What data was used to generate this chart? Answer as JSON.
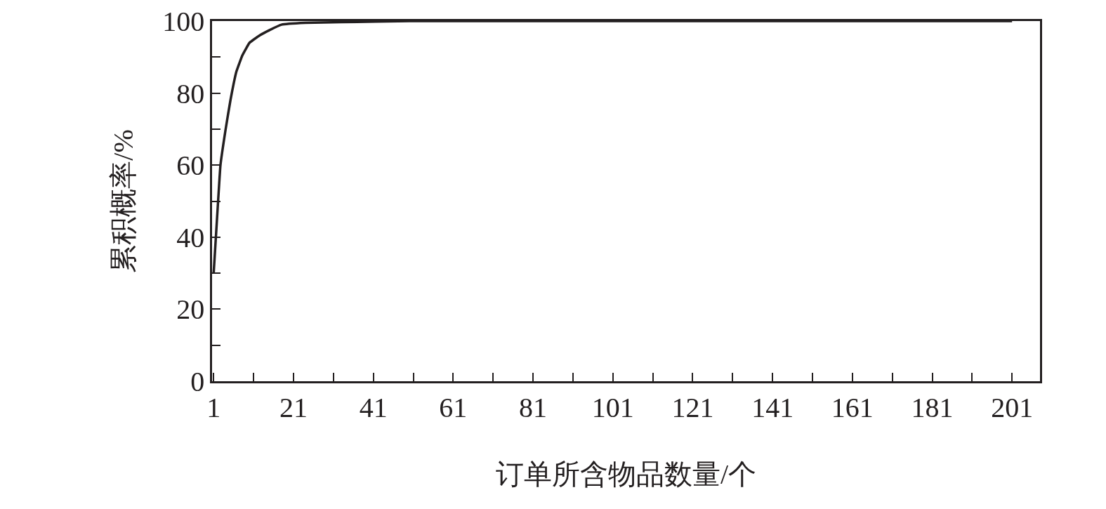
{
  "chart_data": {
    "type": "line",
    "xlabel": "订单所含物品数量/个",
    "ylabel": "累积概率/%",
    "x": [
      1,
      2,
      2.7,
      4,
      5.2,
      6.7,
      8.2,
      10,
      12.5,
      15,
      18,
      24,
      33,
      50,
      100,
      150,
      201
    ],
    "series": [
      {
        "color": "#231f20",
        "values": [
          30,
          48,
          60,
          70,
          78,
          86,
          90.5,
          94,
          96,
          97.5,
          99,
          99.5,
          99.7,
          100,
          100,
          100,
          100
        ]
      }
    ],
    "xlim": [
      0.6,
      208
    ],
    "xticks": [
      1,
      {
        "value": 11,
        "label": null
      },
      21,
      {
        "value": 31,
        "label": null
      },
      41,
      {
        "value": 51,
        "label": null
      },
      61,
      {
        "value": 71,
        "label": null
      },
      81,
      {
        "value": 91,
        "label": null
      },
      101,
      {
        "value": 111,
        "label": null
      },
      121,
      {
        "value": 131,
        "label": null
      },
      141,
      {
        "value": 151,
        "label": null
      },
      161,
      {
        "value": 171,
        "label": null
      },
      181,
      {
        "value": 191,
        "label": null
      },
      201
    ],
    "ylim": [
      0,
      100
    ],
    "yticks": [
      0,
      {
        "value": 10,
        "label": null
      },
      20,
      {
        "value": 30,
        "label": null
      },
      40,
      {
        "value": 50,
        "label": null
      },
      60,
      {
        "value": 70,
        "label": null
      },
      80,
      {
        "value": 90,
        "label": null
      },
      100
    ],
    "marker": "none",
    "line_style": "solid"
  }
}
